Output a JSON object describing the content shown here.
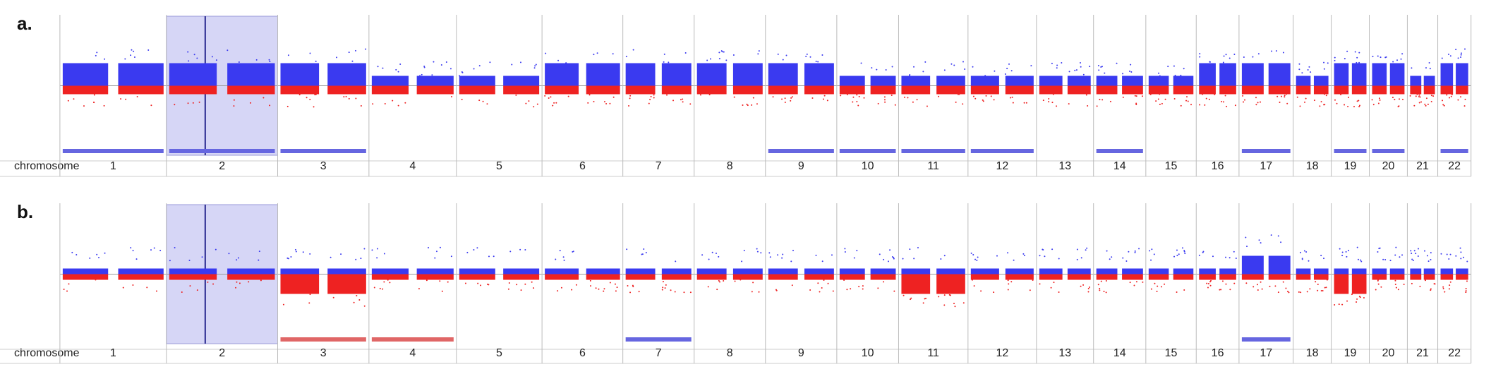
{
  "panels": [
    {
      "label": "a.",
      "axis_label": "chromosome",
      "chromosomes": [
        "1",
        "2",
        "3",
        "4",
        "5",
        "6",
        "7",
        "8",
        "9",
        "10",
        "11",
        "12",
        "13",
        "14",
        "15",
        "16",
        "17",
        "18",
        "19",
        "20",
        "21",
        "22"
      ]
    },
    {
      "label": "b.",
      "axis_label": "chromosome",
      "chromosomes": [
        "1",
        "2",
        "3",
        "4",
        "5",
        "6",
        "7",
        "8",
        "9",
        "10",
        "11",
        "12",
        "13",
        "14",
        "15",
        "16",
        "17",
        "18",
        "19",
        "20",
        "21",
        "22"
      ]
    }
  ]
}
